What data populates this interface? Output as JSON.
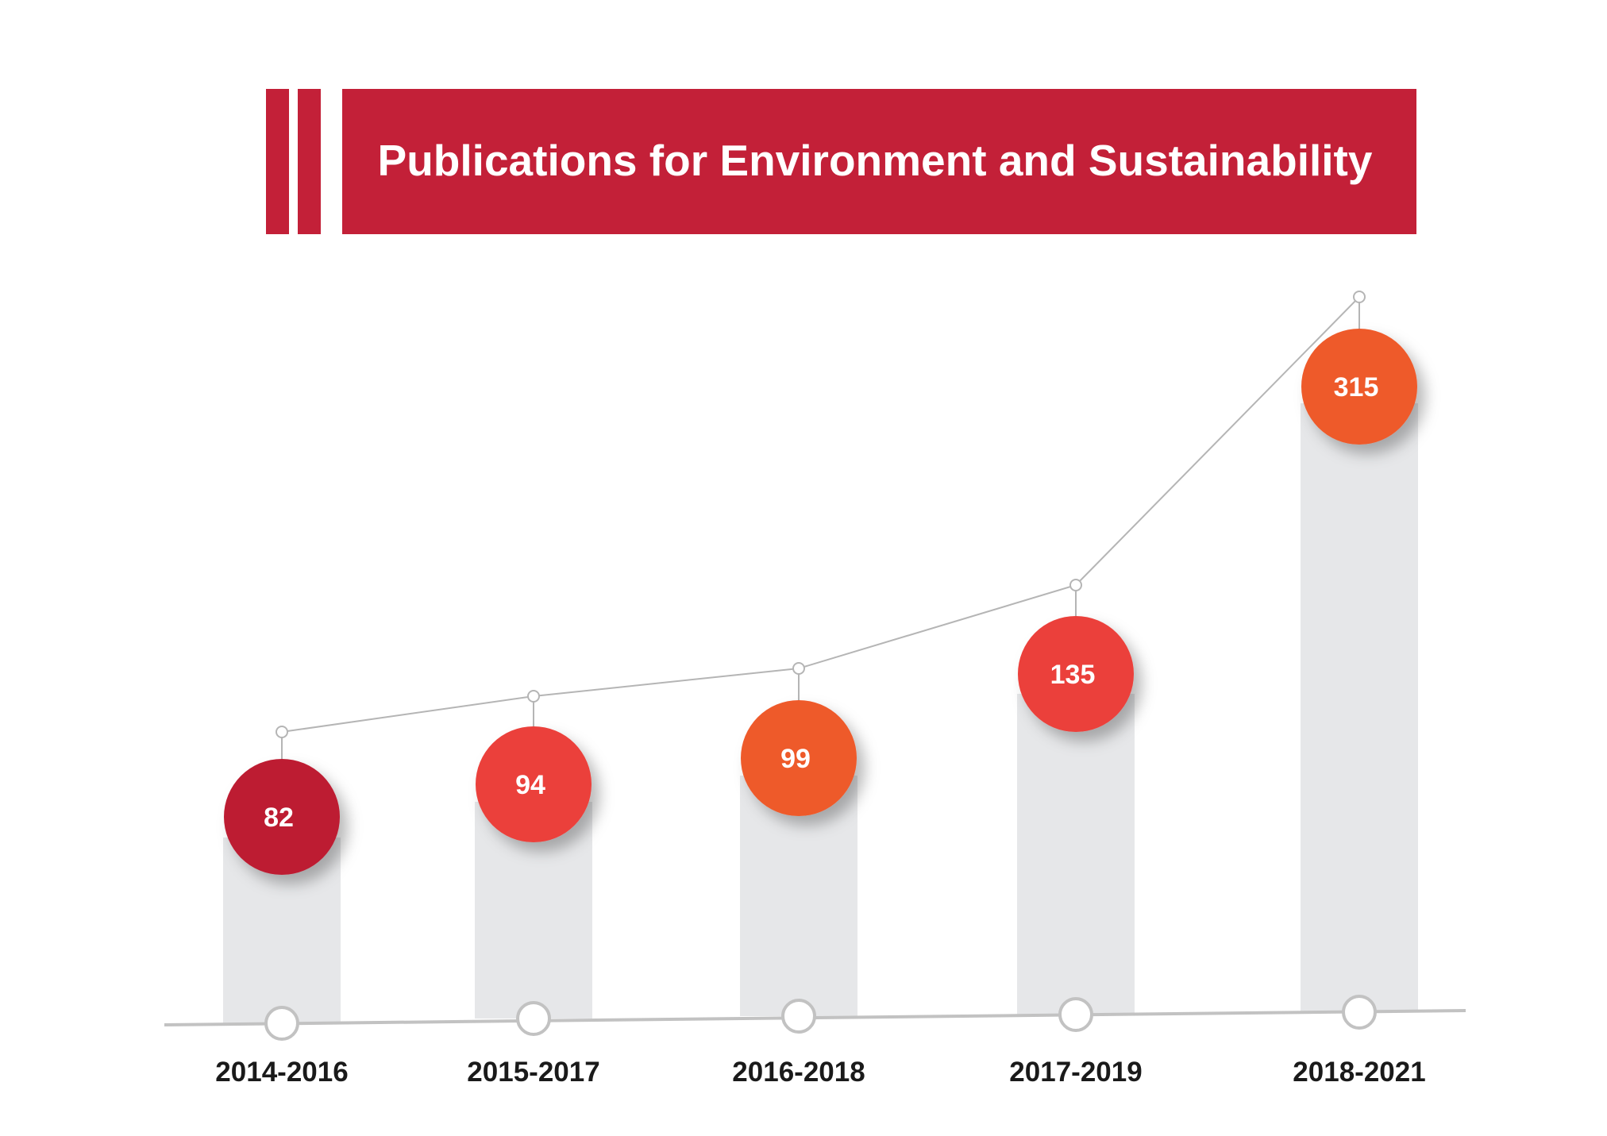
{
  "colors": {
    "title_band": "#c32038",
    "title_text": "#ffffff",
    "column": "#e6e7e9",
    "connector_line": "#b5b5b5",
    "baseline": "#c2c2c2",
    "tick_label": "#1a1a1a",
    "value_label": "#ffffff"
  },
  "chart_data": {
    "type": "bar",
    "title": "Publications for Environment and Sustainability",
    "xlabel": "",
    "ylabel": "",
    "categories": [
      "2014-2016",
      "2015-2017",
      "2016-2018",
      "2017-2019",
      "2018-2021"
    ],
    "values": [
      82,
      94,
      99,
      135,
      315
    ],
    "bubble_colors": [
      "#bd1e32",
      "#eb403a",
      "#ee5a2c",
      "#eb403a",
      "#ee5a2c"
    ],
    "grid": false,
    "legend": "none",
    "overlay": "line connecting the value markers"
  }
}
